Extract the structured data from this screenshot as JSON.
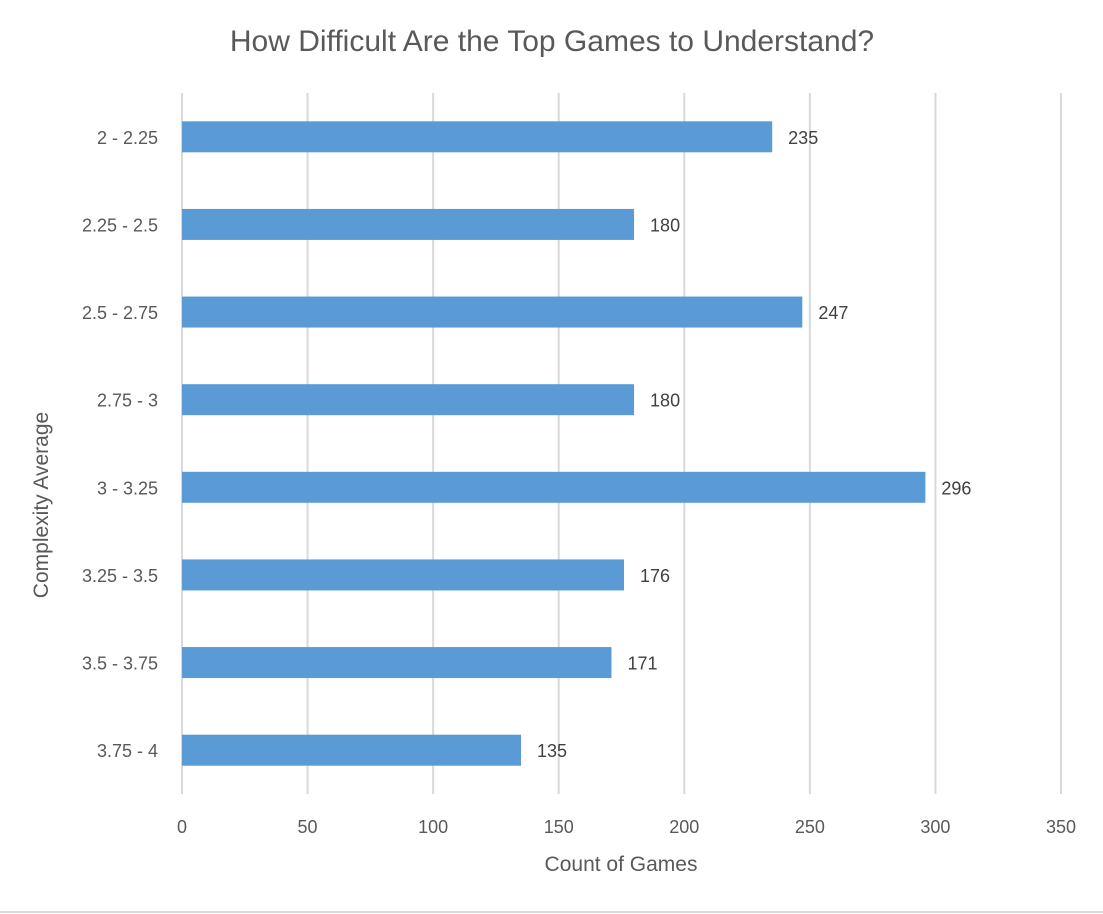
{
  "chart_data": {
    "type": "bar",
    "orientation": "horizontal",
    "title": "How Difficult Are the Top Games to Understand?",
    "xlabel": "Count of Games",
    "ylabel": "Complexity Average",
    "categories": [
      "2 - 2.25",
      "2.25 - 2.5",
      "2.5 - 2.75",
      "2.75 - 3",
      "3 - 3.25",
      "3.25 - 3.5",
      "3.5 - 3.75",
      "3.75 - 4"
    ],
    "values": [
      235,
      180,
      247,
      180,
      296,
      176,
      171,
      135
    ],
    "xlim": [
      0,
      350
    ],
    "xticks": [
      "0",
      "50",
      "100",
      "150",
      "200",
      "250",
      "300",
      "350"
    ],
    "grid": "vertical",
    "data_labels": true,
    "legend": "none",
    "bar_color": "#5b9bd5",
    "grid_color": "#d9d9d9"
  }
}
